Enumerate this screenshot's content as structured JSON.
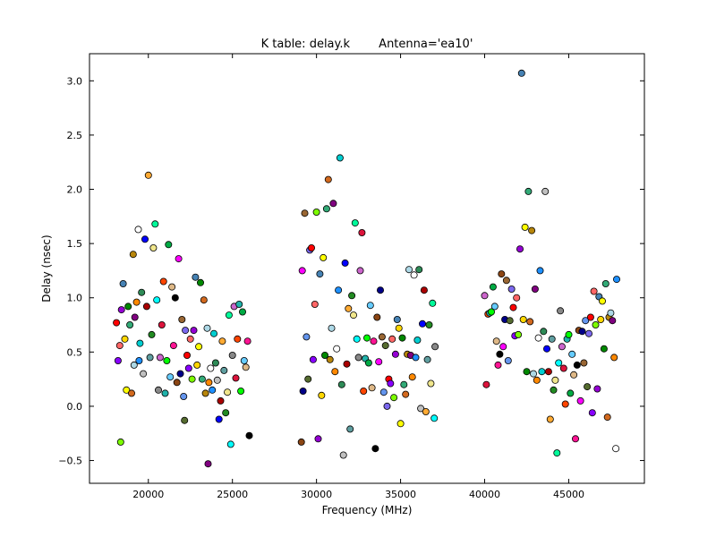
{
  "chart_data": {
    "type": "scatter",
    "title": "K table: delay.k",
    "subtitle": "Antenna='ea10'",
    "xlabel": "Frequency (MHz)",
    "ylabel": "Delay (nsec)",
    "xlim": [
      16500,
      49500
    ],
    "ylim": [
      -0.71,
      3.25
    ],
    "xticks": [
      20000,
      25000,
      30000,
      35000,
      40000,
      45000
    ],
    "xtick_labels": [
      "20000",
      "25000",
      "30000",
      "35000",
      "40000",
      "45000"
    ],
    "yticks": [
      -0.5,
      0.0,
      0.5,
      1.0,
      1.5,
      2.0,
      2.5,
      3.0
    ],
    "ytick_labels": [
      "−0.5",
      "0.0",
      "0.5",
      "1.0",
      "1.5",
      "2.0",
      "2.5",
      "3.0"
    ],
    "grid": false,
    "legend": "none",
    "colors": {
      "axes": "#000000",
      "background": "#ffffff",
      "marker_edge": "#000000",
      "palette": [
        "#ff0000",
        "#00ff00",
        "#0000ff",
        "#ffff00",
        "#ff00ff",
        "#00ffff",
        "#ff8800",
        "#8800ff",
        "#00aa44",
        "#aa0000",
        "#008800",
        "#000088",
        "#888888",
        "#ffffff",
        "#ff6666",
        "#66ccff",
        "#ffaa33",
        "#33aa77",
        "#996633",
        "#cc66cc",
        "#1e90ff",
        "#7cfc00",
        "#deb887",
        "#5f9ea0",
        "#d2691e",
        "#6495ed",
        "#dc143c",
        "#00ced1",
        "#9400d3",
        "#ff1493",
        "#228b22",
        "#b8860b",
        "#556b2f",
        "#ff4500",
        "#2e8b57",
        "#4682b4",
        "#000000",
        "#f0e68c",
        "#add8e6",
        "#7b68ee",
        "#20b2aa",
        "#c0c0c0",
        "#ffd700",
        "#8b4513",
        "#00fa9a",
        "#800080"
      ]
    },
    "points": [
      [
        18100,
        0.77
      ],
      [
        18200,
        0.42
      ],
      [
        18300,
        0.56
      ],
      [
        18350,
        -0.33
      ],
      [
        18400,
        0.89
      ],
      [
        18500,
        1.13
      ],
      [
        18600,
        0.62
      ],
      [
        18700,
        0.15
      ],
      [
        18800,
        0.92
      ],
      [
        18900,
        0.75
      ],
      [
        19000,
        0.12
      ],
      [
        19100,
        1.4
      ],
      [
        19150,
        0.38
      ],
      [
        19200,
        0.82
      ],
      [
        19300,
        0.96
      ],
      [
        19400,
        1.63
      ],
      [
        19450,
        0.42
      ],
      [
        19500,
        0.58
      ],
      [
        19600,
        1.05
      ],
      [
        19700,
        0.3
      ],
      [
        19800,
        1.54
      ],
      [
        19900,
        0.92
      ],
      [
        20000,
        2.13
      ],
      [
        20100,
        0.45
      ],
      [
        20200,
        0.66
      ],
      [
        20300,
        1.46
      ],
      [
        20400,
        1.68
      ],
      [
        20500,
        0.98
      ],
      [
        20600,
        0.15
      ],
      [
        20700,
        0.45
      ],
      [
        20800,
        0.75
      ],
      [
        20900,
        1.15
      ],
      [
        21000,
        0.12
      ],
      [
        21100,
        0.42
      ],
      [
        21200,
        1.49
      ],
      [
        21300,
        0.27
      ],
      [
        21400,
        1.1
      ],
      [
        21500,
        0.56
      ],
      [
        21600,
        1.0
      ],
      [
        21700,
        0.22
      ],
      [
        21800,
        1.36
      ],
      [
        21900,
        0.3
      ],
      [
        22000,
        0.8
      ],
      [
        22100,
        0.09
      ],
      [
        22150,
        -0.13
      ],
      [
        22200,
        0.7
      ],
      [
        22300,
        0.47
      ],
      [
        22400,
        0.35
      ],
      [
        22500,
        0.62
      ],
      [
        22600,
        0.25
      ],
      [
        22700,
        0.7
      ],
      [
        22800,
        1.19
      ],
      [
        22900,
        0.38
      ],
      [
        23000,
        0.55
      ],
      [
        23100,
        1.14
      ],
      [
        23200,
        0.25
      ],
      [
        23300,
        0.98
      ],
      [
        23400,
        0.12
      ],
      [
        23500,
        0.72
      ],
      [
        23550,
        -0.53
      ],
      [
        23600,
        0.22
      ],
      [
        23700,
        0.35
      ],
      [
        23800,
        0.15
      ],
      [
        23900,
        0.67
      ],
      [
        24000,
        0.4
      ],
      [
        24100,
        0.24
      ],
      [
        24200,
        -0.12
      ],
      [
        24300,
        0.05
      ],
      [
        24400,
        0.6
      ],
      [
        24500,
        0.33
      ],
      [
        24600,
        -0.06
      ],
      [
        24700,
        0.13
      ],
      [
        24800,
        0.84
      ],
      [
        24900,
        -0.35
      ],
      [
        25000,
        0.47
      ],
      [
        25100,
        0.92
      ],
      [
        25200,
        0.26
      ],
      [
        25300,
        0.62
      ],
      [
        25400,
        0.94
      ],
      [
        25500,
        0.14
      ],
      [
        25600,
        0.87
      ],
      [
        25700,
        0.42
      ],
      [
        25800,
        0.36
      ],
      [
        25900,
        0.6
      ],
      [
        26000,
        -0.27
      ],
      [
        29100,
        -0.33
      ],
      [
        29150,
        1.25
      ],
      [
        29200,
        0.14
      ],
      [
        29300,
        1.78
      ],
      [
        29400,
        0.64
      ],
      [
        29500,
        0.25
      ],
      [
        29600,
        1.44
      ],
      [
        29700,
        1.46
      ],
      [
        29800,
        0.43
      ],
      [
        29900,
        0.94
      ],
      [
        30000,
        1.79
      ],
      [
        30100,
        -0.3
      ],
      [
        30200,
        1.22
      ],
      [
        30300,
        0.1
      ],
      [
        30400,
        1.37
      ],
      [
        30500,
        0.47
      ],
      [
        30600,
        1.82
      ],
      [
        30700,
        2.09
      ],
      [
        30800,
        0.43
      ],
      [
        30900,
        0.72
      ],
      [
        31000,
        1.87
      ],
      [
        31100,
        0.32
      ],
      [
        31200,
        0.53
      ],
      [
        31300,
        1.07
      ],
      [
        31400,
        2.29
      ],
      [
        31500,
        0.2
      ],
      [
        31600,
        -0.45
      ],
      [
        31700,
        1.32
      ],
      [
        31800,
        0.39
      ],
      [
        31900,
        0.9
      ],
      [
        32000,
        -0.21
      ],
      [
        32100,
        1.02
      ],
      [
        32200,
        0.84
      ],
      [
        32300,
        1.69
      ],
      [
        32400,
        0.62
      ],
      [
        32500,
        0.45
      ],
      [
        32600,
        1.25
      ],
      [
        32700,
        1.6
      ],
      [
        32800,
        0.14
      ],
      [
        32900,
        0.44
      ],
      [
        33000,
        0.63
      ],
      [
        33100,
        0.4
      ],
      [
        33200,
        0.93
      ],
      [
        33300,
        0.17
      ],
      [
        33400,
        0.6
      ],
      [
        33500,
        -0.39
      ],
      [
        33600,
        0.82
      ],
      [
        33700,
        0.41
      ],
      [
        33800,
        1.07
      ],
      [
        33900,
        0.64
      ],
      [
        34000,
        0.13
      ],
      [
        34100,
        0.56
      ],
      [
        34200,
        0.0
      ],
      [
        34300,
        0.25
      ],
      [
        34400,
        0.21
      ],
      [
        34500,
        0.62
      ],
      [
        34600,
        0.08
      ],
      [
        34700,
        0.48
      ],
      [
        34800,
        0.8
      ],
      [
        34900,
        0.72
      ],
      [
        35000,
        -0.16
      ],
      [
        35100,
        0.63
      ],
      [
        35200,
        0.2
      ],
      [
        35300,
        0.11
      ],
      [
        35400,
        0.48
      ],
      [
        35500,
        1.26
      ],
      [
        35600,
        0.47
      ],
      [
        35700,
        0.27
      ],
      [
        35800,
        1.21
      ],
      [
        35900,
        0.45
      ],
      [
        36000,
        0.61
      ],
      [
        36100,
        1.26
      ],
      [
        36200,
        -0.02
      ],
      [
        36300,
        0.76
      ],
      [
        36400,
        1.07
      ],
      [
        36500,
        -0.05
      ],
      [
        36600,
        0.43
      ],
      [
        36700,
        0.75
      ],
      [
        36800,
        0.21
      ],
      [
        36900,
        0.95
      ],
      [
        37000,
        -0.11
      ],
      [
        37050,
        0.55
      ],
      [
        40000,
        1.02
      ],
      [
        40100,
        0.2
      ],
      [
        40200,
        0.85
      ],
      [
        40300,
        0.86
      ],
      [
        40400,
        0.87
      ],
      [
        40500,
        1.1
      ],
      [
        40600,
        0.92
      ],
      [
        40700,
        0.6
      ],
      [
        40800,
        0.38
      ],
      [
        40900,
        0.48
      ],
      [
        41000,
        1.22
      ],
      [
        41100,
        0.55
      ],
      [
        41200,
        0.8
      ],
      [
        41300,
        1.16
      ],
      [
        41400,
        0.42
      ],
      [
        41500,
        0.79
      ],
      [
        41600,
        1.08
      ],
      [
        41700,
        0.91
      ],
      [
        41800,
        0.65
      ],
      [
        41900,
        1.0
      ],
      [
        42000,
        0.66
      ],
      [
        42100,
        1.45
      ],
      [
        42200,
        3.07
      ],
      [
        42300,
        0.8
      ],
      [
        42400,
        1.65
      ],
      [
        42500,
        0.32
      ],
      [
        42600,
        1.98
      ],
      [
        42700,
        0.78
      ],
      [
        42800,
        1.62
      ],
      [
        42900,
        0.3
      ],
      [
        43000,
        1.08
      ],
      [
        43100,
        0.24
      ],
      [
        43200,
        0.63
      ],
      [
        43300,
        1.25
      ],
      [
        43400,
        0.32
      ],
      [
        43500,
        0.69
      ],
      [
        43600,
        1.98
      ],
      [
        43700,
        0.53
      ],
      [
        43800,
        0.32
      ],
      [
        43900,
        -0.12
      ],
      [
        44000,
        0.62
      ],
      [
        44100,
        0.15
      ],
      [
        44200,
        0.24
      ],
      [
        44300,
        -0.43
      ],
      [
        44400,
        0.4
      ],
      [
        44500,
        0.88
      ],
      [
        44600,
        0.55
      ],
      [
        44700,
        0.35
      ],
      [
        44800,
        0.02
      ],
      [
        44900,
        0.62
      ],
      [
        45000,
        0.66
      ],
      [
        45100,
        0.12
      ],
      [
        45200,
        0.48
      ],
      [
        45300,
        0.29
      ],
      [
        45400,
        -0.3
      ],
      [
        45500,
        0.38
      ],
      [
        45600,
        0.7
      ],
      [
        45700,
        0.05
      ],
      [
        45800,
        0.69
      ],
      [
        45900,
        0.4
      ],
      [
        46000,
        0.79
      ],
      [
        46100,
        0.18
      ],
      [
        46200,
        0.67
      ],
      [
        46300,
        0.82
      ],
      [
        46400,
        -0.06
      ],
      [
        46500,
        1.06
      ],
      [
        46600,
        0.75
      ],
      [
        46700,
        0.16
      ],
      [
        46800,
        1.01
      ],
      [
        46900,
        0.8
      ],
      [
        47000,
        0.97
      ],
      [
        47100,
        0.53
      ],
      [
        47200,
        1.13
      ],
      [
        47300,
        -0.1
      ],
      [
        47400,
        0.82
      ],
      [
        47500,
        0.86
      ],
      [
        47600,
        0.79
      ],
      [
        47700,
        0.45
      ],
      [
        47800,
        -0.39
      ],
      [
        47850,
        1.17
      ]
    ]
  }
}
